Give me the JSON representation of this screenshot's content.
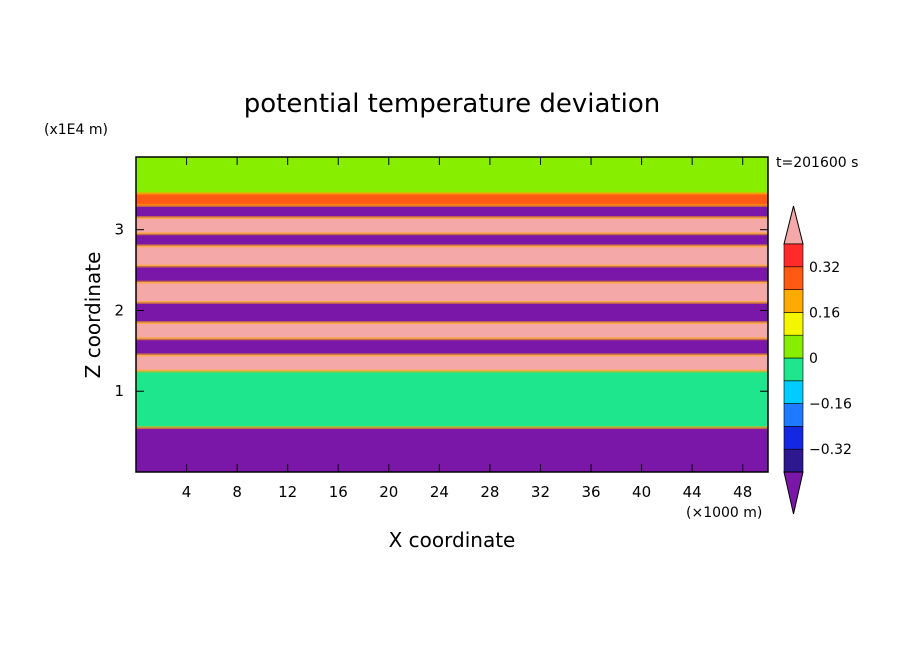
{
  "chart_data": {
    "type": "heatmap",
    "title": "potential temperature deviation",
    "xlabel": "X coordinate",
    "ylabel": "Z coordinate",
    "x_unit": "(×1000 m)",
    "y_unit": "(x1E4 m)",
    "time_label": "t=201600 s",
    "xlim": [
      0,
      50
    ],
    "ylim": [
      0,
      3.9
    ],
    "x_ticks": [
      "4",
      "8",
      "12",
      "16",
      "20",
      "24",
      "28",
      "32",
      "36",
      "40",
      "44",
      "48"
    ],
    "y_ticks": [
      "1",
      "2",
      "3"
    ],
    "colorbar_labels": [
      "0.32",
      "0.16",
      "0",
      "−0.16",
      "−0.32"
    ],
    "colorbar_levels": [
      -0.4,
      -0.32,
      -0.24,
      -0.16,
      -0.08,
      0,
      0.08,
      0.16,
      0.24,
      0.32,
      0.4
    ],
    "colors": {
      "below": "#7a16a8",
      "bands": [
        "#2d1890",
        "#1428e0",
        "#1e7aff",
        "#00ccff",
        "#1ee68c",
        "#88ee00",
        "#f5f500",
        "#ffaa00",
        "#ff5a14",
        "#ff2a2a"
      ],
      "above": "#f5a8a8"
    },
    "layers": [
      {
        "z": [
          3.45,
          3.9
        ],
        "value": 0.02
      },
      {
        "z": [
          3.3,
          3.45
        ],
        "value": 0.3
      },
      {
        "z": [
          3.15,
          3.3
        ],
        "value": -0.45
      },
      {
        "z": [
          2.95,
          3.15
        ],
        "value": 0.45
      },
      {
        "z": [
          2.8,
          2.95
        ],
        "value": -0.45
      },
      {
        "z": [
          2.55,
          2.8
        ],
        "value": 0.45
      },
      {
        "z": [
          2.35,
          2.55
        ],
        "value": -0.45
      },
      {
        "z": [
          2.1,
          2.35
        ],
        "value": 0.45
      },
      {
        "z": [
          1.85,
          2.1
        ],
        "value": -0.45
      },
      {
        "z": [
          1.65,
          1.85
        ],
        "value": 0.45
      },
      {
        "z": [
          1.45,
          1.65
        ],
        "value": -0.45
      },
      {
        "z": [
          1.25,
          1.45
        ],
        "value": 0.45
      },
      {
        "z": [
          0.55,
          1.25
        ],
        "value": -0.02
      },
      {
        "z": [
          0,
          0.55
        ],
        "value": -0.45
      }
    ]
  }
}
